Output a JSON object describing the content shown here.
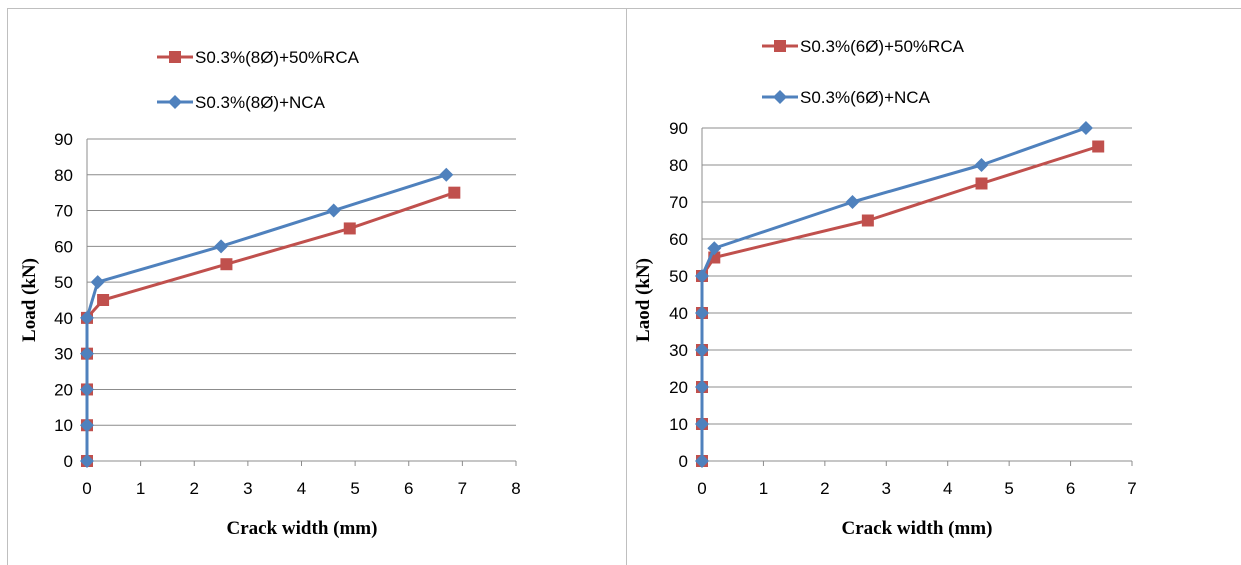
{
  "chart_data": [
    {
      "type": "line",
      "xlabel": "Crack width (mm)",
      "ylabel": "Load (kN)",
      "xlim": [
        0,
        8
      ],
      "ylim": [
        0,
        90
      ],
      "xticks": [
        0,
        1,
        2,
        3,
        4,
        5,
        6,
        7,
        8
      ],
      "yticks": [
        0,
        10,
        20,
        30,
        40,
        50,
        60,
        70,
        80,
        90
      ],
      "grid": "horizontal",
      "legend_position": "top",
      "series": [
        {
          "name": "S0.3%(8Ø)+50%RCA",
          "color": "#c0504d",
          "marker": "square",
          "points": [
            [
              0,
              0
            ],
            [
              0,
              10
            ],
            [
              0,
              20
            ],
            [
              0,
              30
            ],
            [
              0,
              40
            ],
            [
              0.3,
              45
            ],
            [
              2.6,
              55
            ],
            [
              4.9,
              65
            ],
            [
              6.85,
              75
            ]
          ]
        },
        {
          "name": "S0.3%(8Ø)+NCA",
          "color": "#4f81bd",
          "marker": "diamond",
          "points": [
            [
              0,
              0
            ],
            [
              0,
              10
            ],
            [
              0,
              20
            ],
            [
              0,
              30
            ],
            [
              0,
              40
            ],
            [
              0.2,
              50
            ],
            [
              2.5,
              60
            ],
            [
              4.6,
              70
            ],
            [
              6.7,
              80
            ]
          ]
        }
      ]
    },
    {
      "type": "line",
      "xlabel": "Crack width (mm)",
      "ylabel": "Laod (kN)",
      "xlim": [
        0,
        7
      ],
      "ylim": [
        0,
        90
      ],
      "xticks": [
        0,
        1,
        2,
        3,
        4,
        5,
        6,
        7
      ],
      "yticks": [
        0,
        10,
        20,
        30,
        40,
        50,
        60,
        70,
        80,
        90
      ],
      "grid": "horizontal",
      "legend_position": "top",
      "series": [
        {
          "name": "S0.3%(6Ø)+50%RCA",
          "color": "#c0504d",
          "marker": "square",
          "points": [
            [
              0,
              0
            ],
            [
              0,
              10
            ],
            [
              0,
              20
            ],
            [
              0,
              30
            ],
            [
              0,
              40
            ],
            [
              0,
              50
            ],
            [
              0.2,
              55
            ],
            [
              2.7,
              65
            ],
            [
              4.55,
              75
            ],
            [
              6.45,
              85
            ]
          ]
        },
        {
          "name": "S0.3%(6Ø)+NCA",
          "color": "#4f81bd",
          "marker": "diamond",
          "points": [
            [
              0,
              0
            ],
            [
              0,
              10
            ],
            [
              0,
              20
            ],
            [
              0,
              30
            ],
            [
              0,
              40
            ],
            [
              0,
              50
            ],
            [
              0.2,
              57.5
            ],
            [
              2.45,
              70
            ],
            [
              4.55,
              80
            ],
            [
              6.25,
              90
            ]
          ]
        }
      ]
    }
  ]
}
